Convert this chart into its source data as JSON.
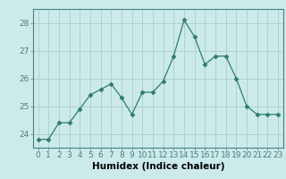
{
  "x": [
    0,
    1,
    2,
    3,
    4,
    5,
    6,
    7,
    8,
    9,
    10,
    11,
    12,
    13,
    14,
    15,
    16,
    17,
    18,
    19,
    20,
    21,
    22,
    23
  ],
  "y": [
    23.8,
    23.8,
    24.4,
    24.4,
    24.9,
    25.4,
    25.6,
    25.8,
    25.3,
    24.7,
    25.5,
    25.5,
    25.9,
    26.8,
    28.1,
    27.5,
    26.5,
    26.8,
    26.8,
    26.0,
    25.0,
    24.7,
    24.7,
    24.7
  ],
  "line_color": "#2e7d6e",
  "marker": "D",
  "marker_size": 2.5,
  "bg_color": "#cceaea",
  "grid_color": "#aacece",
  "xlabel": "Humidex (Indice chaleur)",
  "ylim": [
    23.5,
    28.5
  ],
  "xlim": [
    -0.5,
    23.5
  ],
  "yticks": [
    24,
    25,
    26,
    27,
    28
  ],
  "xticks": [
    0,
    1,
    2,
    3,
    4,
    5,
    6,
    7,
    8,
    9,
    10,
    11,
    12,
    13,
    14,
    15,
    16,
    17,
    18,
    19,
    20,
    21,
    22,
    23
  ],
  "tick_label_fontsize": 6.5,
  "xlabel_fontsize": 7.5,
  "spine_color": "#4a8080",
  "tick_color": "#4a8080"
}
